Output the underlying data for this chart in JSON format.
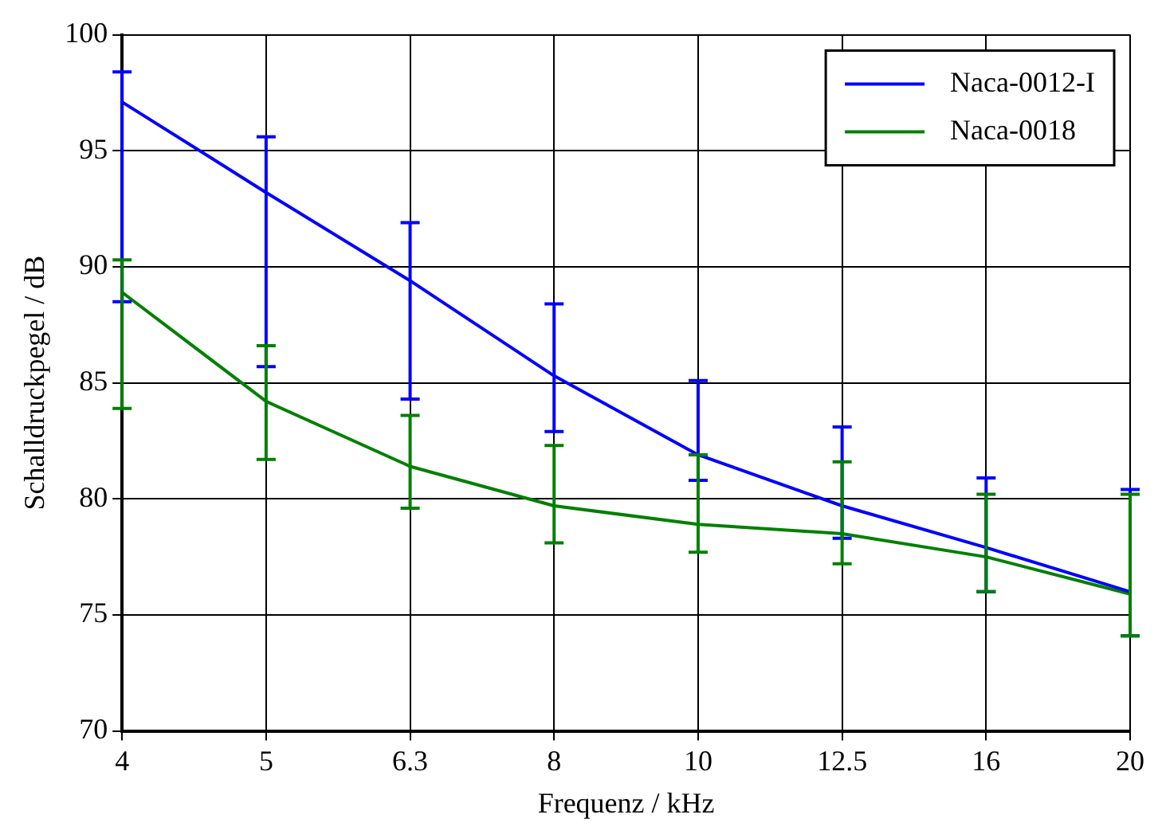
{
  "chart_data": {
    "type": "line",
    "xlabel": "Frequenz / kHz",
    "ylabel": "Schalldruckpegel / dB",
    "categories": [
      "4",
      "5",
      "6.3",
      "8",
      "10",
      "12.5",
      "16",
      "20"
    ],
    "ylim": [
      70,
      100
    ],
    "yticks": [
      70,
      75,
      80,
      85,
      90,
      95,
      100
    ],
    "grid": true,
    "legend": "top right",
    "marker": "none",
    "series": [
      {
        "name": "Naca-0012-I",
        "color": "#0000ff",
        "values": [
          97.1,
          93.2,
          89.4,
          85.3,
          81.9,
          79.7,
          77.9,
          76.0
        ],
        "errors": [
          [
            88.5,
            98.4
          ],
          [
            85.7,
            95.6
          ],
          [
            84.3,
            91.9
          ],
          [
            82.9,
            88.4
          ],
          [
            80.8,
            85.1
          ],
          [
            78.3,
            83.1
          ],
          [
            76.0,
            80.9
          ],
          [
            74.1,
            80.4
          ]
        ]
      },
      {
        "name": "Naca-0018",
        "color": "#008000",
        "values": [
          88.9,
          84.2,
          81.4,
          79.7,
          78.9,
          78.5,
          77.5,
          75.9
        ],
        "errors": [
          [
            83.9,
            90.3
          ],
          [
            81.7,
            86.6
          ],
          [
            79.6,
            83.6
          ],
          [
            78.1,
            82.3
          ],
          [
            77.7,
            81.9
          ],
          [
            77.2,
            81.6
          ],
          [
            76.0,
            80.2
          ],
          [
            74.1,
            80.2
          ]
        ]
      }
    ]
  }
}
